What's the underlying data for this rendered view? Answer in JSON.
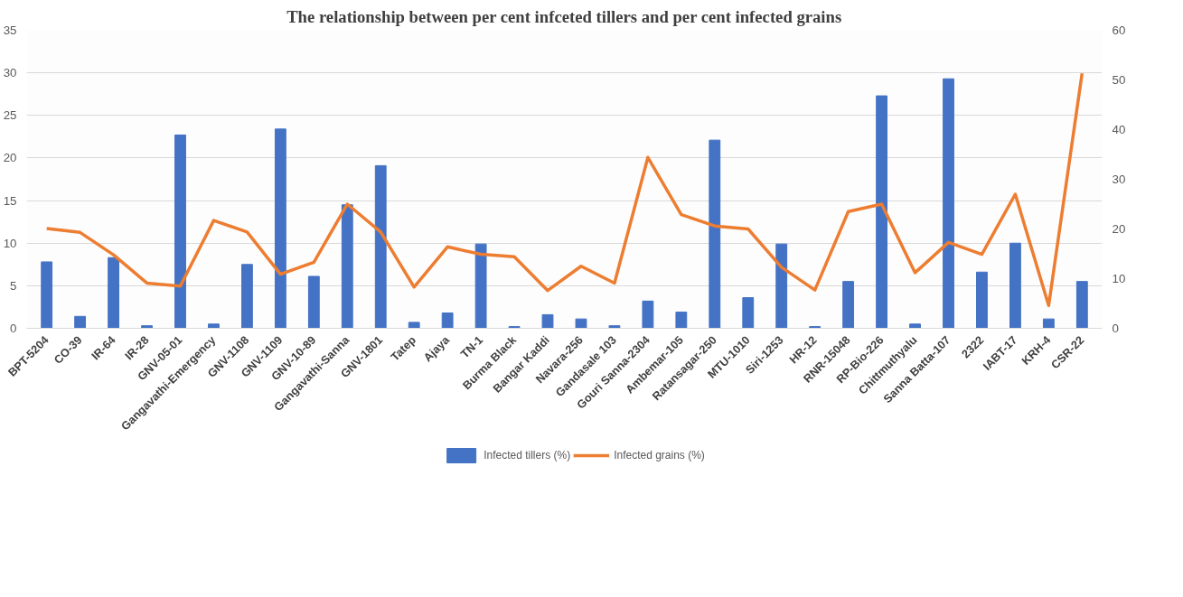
{
  "chart_data": {
    "type": "bar",
    "title": "The relationship between per cent infceted tillers and per cent infected grains",
    "categories": [
      "BPT-5204",
      "CO-39",
      "IR-64",
      "IR-28",
      "GNV-05-01",
      "Gangavathi-Emergency",
      "GNV-1108",
      "GNV-1109",
      "GNV-10-89",
      "Gangavathi-Sanna",
      "GNV-1801",
      "Tatep",
      "Ajaya",
      "TN-1",
      "Burma Black",
      "Bangar Kaddi",
      "Navara-256",
      "Gandasale 103",
      "Gouri Sanna-2304",
      "Ambemar-105",
      "Ratansagar-250",
      "MTU-1010",
      "Siri-1253",
      "HR-12",
      "RNR-15048",
      "RP-Bio-226",
      "Chittmuthyalu",
      "Sanna Batta-107",
      "2322",
      "IABT-17",
      "KRH-4",
      "CSR-22"
    ],
    "series": [
      {
        "name": "Infected tillers (%)",
        "color": "#4472c4",
        "values": [
          7.8,
          1.4,
          8.3,
          0.3,
          22.7,
          0.5,
          7.5,
          23.4,
          6.1,
          14.5,
          19.1,
          0.7,
          1.8,
          9.9,
          0.2,
          1.6,
          1.1,
          0.3,
          3.2,
          1.9,
          22.1,
          3.6,
          9.9,
          0.2,
          5.5,
          27.3,
          0.5,
          29.3,
          6.6,
          10.0,
          1.1,
          5.5
        ]
      },
      {
        "name": "Infected grains (%)",
        "type": "line",
        "axis": "y2",
        "color": "#ed7d31",
        "values": [
          20.1,
          19.3,
          14.8,
          9.1,
          8.5,
          21.7,
          19.4,
          10.9,
          13.3,
          25.0,
          19.4,
          8.3,
          16.4,
          14.9,
          14.4,
          7.6,
          12.5,
          9.1,
          34.4,
          22.9,
          20.6,
          20.0,
          12.3,
          7.7,
          23.5,
          25.0,
          11.2,
          17.3,
          14.9,
          27.0,
          4.6,
          51.3
        ]
      }
    ],
    "ylim": [
      0,
      35
    ],
    "yticks": [
      0,
      5,
      10,
      15,
      20,
      25,
      30,
      35
    ],
    "y2lim": [
      0,
      60
    ],
    "y2ticks": [
      0,
      10,
      20,
      30,
      40,
      50,
      60
    ],
    "grid": "y",
    "legend": "bottom",
    "marker": "none",
    "line_style": "solid"
  }
}
